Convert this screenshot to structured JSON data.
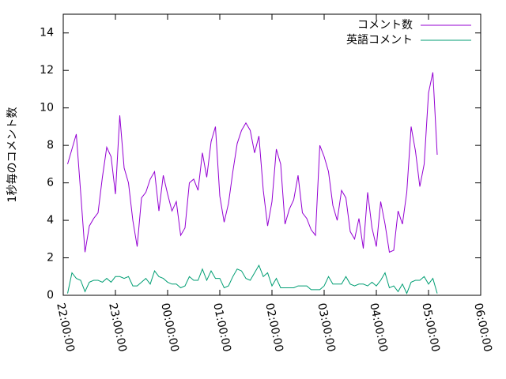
{
  "chart_data": {
    "type": "line",
    "y_label": "1秒毎のコメント数",
    "x": [
      5,
      10,
      15,
      20,
      25,
      30,
      35,
      40,
      45,
      50,
      55,
      60,
      65,
      70,
      75,
      80,
      85,
      90,
      95,
      100,
      105,
      110,
      115,
      120,
      125,
      130,
      135,
      140,
      145,
      150,
      155,
      160,
      165,
      170,
      175,
      180,
      185,
      190,
      195,
      200,
      205,
      210,
      215,
      220,
      225,
      230,
      235,
      240,
      245,
      250,
      255,
      260,
      265,
      270,
      275,
      280,
      285,
      290,
      295,
      300,
      305,
      310,
      315,
      320,
      325,
      330,
      335,
      340,
      345,
      350,
      355,
      360,
      365,
      370,
      375,
      380,
      385,
      390,
      395,
      400,
      405,
      410,
      415,
      420,
      425,
      430
    ],
    "series": [
      {
        "name": "コメント数",
        "color": "#9400d3",
        "values": [
          7.0,
          7.8,
          8.6,
          5.5,
          2.3,
          3.7,
          4.1,
          4.4,
          6.3,
          7.9,
          7.4,
          5.4,
          9.6,
          6.8,
          6.0,
          4.0,
          2.6,
          5.2,
          5.5,
          6.2,
          6.6,
          4.5,
          6.4,
          5.4,
          4.5,
          5.0,
          3.2,
          3.6,
          6.0,
          6.2,
          5.6,
          7.6,
          6.3,
          8.2,
          9.0,
          5.3,
          3.9,
          4.9,
          6.6,
          8.1,
          8.8,
          9.2,
          8.8,
          7.6,
          8.5,
          5.6,
          3.7,
          5.0,
          7.8,
          7.0,
          3.8,
          4.6,
          5.1,
          6.4,
          4.4,
          4.1,
          3.5,
          3.2,
          8.0,
          7.4,
          6.6,
          4.8,
          4.0,
          5.6,
          5.2,
          3.4,
          3.0,
          4.1,
          2.5,
          5.5,
          3.6,
          2.6,
          5.0,
          3.8,
          2.3,
          2.4,
          4.5,
          3.8,
          5.5,
          9.0,
          7.7,
          5.8,
          7.0,
          10.8,
          11.9,
          7.5
        ]
      },
      {
        "name": "英語コメント",
        "color": "#009e73",
        "values": [
          0.1,
          1.2,
          0.9,
          0.8,
          0.2,
          0.7,
          0.8,
          0.8,
          0.7,
          0.9,
          0.7,
          1.0,
          1.0,
          0.9,
          1.0,
          0.5,
          0.5,
          0.7,
          0.9,
          0.6,
          1.3,
          1.0,
          0.9,
          0.7,
          0.6,
          0.6,
          0.4,
          0.5,
          1.0,
          0.8,
          0.8,
          1.4,
          0.8,
          1.3,
          0.9,
          0.9,
          0.4,
          0.5,
          1.0,
          1.4,
          1.3,
          0.9,
          0.8,
          1.2,
          1.6,
          1.0,
          1.2,
          0.5,
          0.9,
          0.4,
          0.4,
          0.4,
          0.4,
          0.5,
          0.5,
          0.5,
          0.3,
          0.3,
          0.3,
          0.5,
          1.0,
          0.6,
          0.6,
          0.6,
          1.0,
          0.6,
          0.5,
          0.6,
          0.6,
          0.5,
          0.7,
          0.5,
          0.8,
          1.2,
          0.4,
          0.5,
          0.2,
          0.6,
          0.1,
          0.7,
          0.8,
          0.8,
          1.0,
          0.6,
          0.9,
          0.1
        ]
      }
    ],
    "xlim": [
      0,
      480
    ],
    "xticks": [
      {
        "value": 0,
        "label": "22:00:00"
      },
      {
        "value": 60,
        "label": "23:00:00"
      },
      {
        "value": 120,
        "label": "00:00:00"
      },
      {
        "value": 180,
        "label": "01:00:00"
      },
      {
        "value": 240,
        "label": "02:00:00"
      },
      {
        "value": 300,
        "label": "03:00:00"
      },
      {
        "value": 360,
        "label": "04:00:00"
      },
      {
        "value": 420,
        "label": "05:00:00"
      },
      {
        "value": 480,
        "label": "06:00:00"
      }
    ],
    "ylim": [
      0,
      15
    ],
    "yticks": [
      0,
      2,
      4,
      6,
      8,
      10,
      12,
      14
    ],
    "grid": false,
    "legend": "top-right"
  }
}
